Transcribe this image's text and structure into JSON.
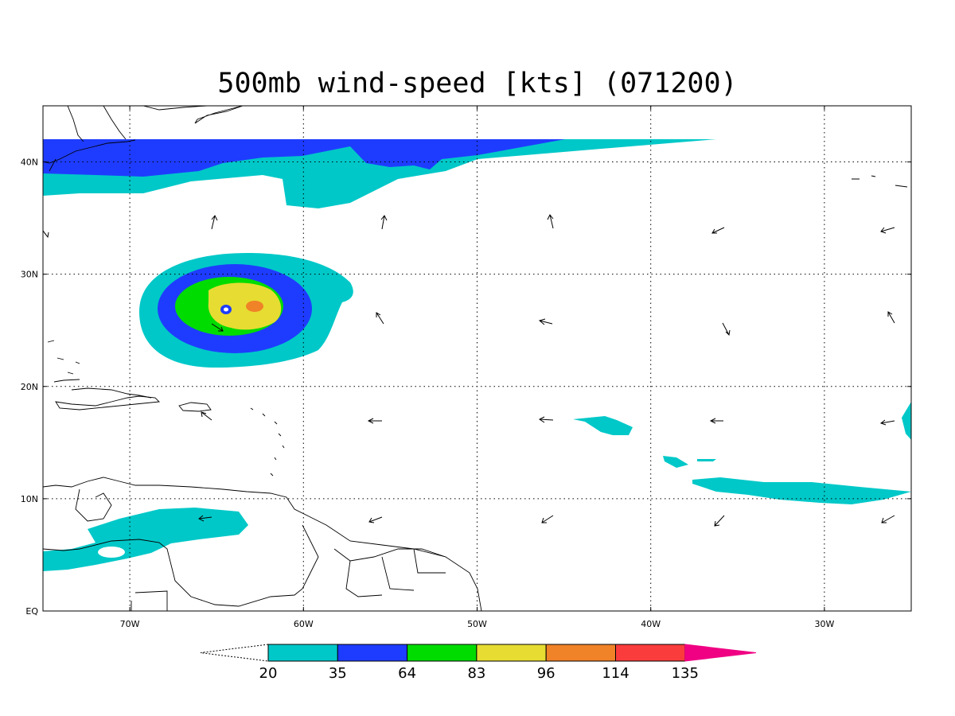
{
  "title": "500mb wind-speed [kts] (071200)",
  "colors": {
    "c20": "#00c8c8",
    "c35": "#1e3cff",
    "c64": "#00dc00",
    "c83": "#e6dc32",
    "c96": "#f08228",
    "c114": "#fa3c3c",
    "c135": "#f00082"
  },
  "lat_labels": [
    "40N",
    "30N",
    "20N",
    "10N",
    "EQ"
  ],
  "lat_values": [
    40,
    30,
    20,
    10,
    0
  ],
  "lon_labels": [
    "70W",
    "60W",
    "50W",
    "40W",
    "30W"
  ],
  "lon_values": [
    -70,
    -60,
    -50,
    -40,
    -30
  ],
  "legend": {
    "labels": [
      "20",
      "35",
      "64",
      "83",
      "96",
      "114",
      "135"
    ],
    "values": [
      20,
      35,
      64,
      83,
      96,
      114,
      135
    ]
  },
  "map_extent": {
    "lon": [
      -75,
      -25
    ],
    "lat": [
      0,
      45
    ]
  },
  "grid": "dotted"
}
